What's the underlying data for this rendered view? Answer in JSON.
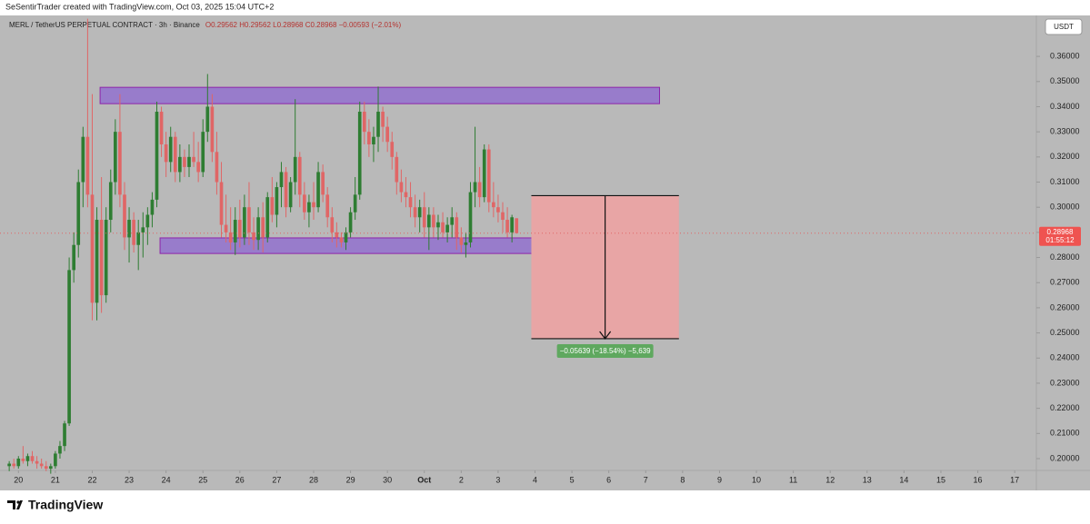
{
  "header": {
    "credit": "SeSentirTrader created with TradingView.com, Oct 03, 2025 15:04 UTC+2",
    "brand": "TradingView"
  },
  "chart_data": {
    "type": "candlestick",
    "title": "MERL / TetherUS PERPETUAL CONTRACT · 3h · Binance",
    "ohlc_legend": "O0.29562 H0.29562 L0.28968 C0.28968 −0.00593 (−2.01%)",
    "currency": "USDT",
    "countdown": "01:55:12",
    "up_color": "#2e7d32",
    "down_color": "#e06666",
    "background": "#b9b9b9",
    "xlim": [
      -2,
      222.7
    ],
    "xticks": [
      {
        "value": 2,
        "label": "20"
      },
      {
        "value": 10,
        "label": "21"
      },
      {
        "value": 18,
        "label": "22"
      },
      {
        "value": 26,
        "label": "23"
      },
      {
        "value": 34,
        "label": "24"
      },
      {
        "value": 42,
        "label": "25"
      },
      {
        "value": 50,
        "label": "26"
      },
      {
        "value": 58,
        "label": "27"
      },
      {
        "value": 66,
        "label": "28"
      },
      {
        "value": 74,
        "label": "29"
      },
      {
        "value": 82,
        "label": "30"
      },
      {
        "value": 90,
        "label": "Oct"
      },
      {
        "value": 98,
        "label": "2"
      },
      {
        "value": 106,
        "label": "3"
      },
      {
        "value": 114,
        "label": "4"
      },
      {
        "value": 122,
        "label": "5"
      },
      {
        "value": 130,
        "label": "6"
      },
      {
        "value": 138,
        "label": "7"
      },
      {
        "value": 146,
        "label": "8"
      },
      {
        "value": 154,
        "label": "9"
      },
      {
        "value": 162,
        "label": "10"
      },
      {
        "value": 170,
        "label": "11"
      },
      {
        "value": 178,
        "label": "12"
      },
      {
        "value": 186,
        "label": "13"
      },
      {
        "value": 194,
        "label": "14"
      },
      {
        "value": 202,
        "label": "15"
      },
      {
        "value": 210,
        "label": "16"
      },
      {
        "value": 218,
        "label": "17"
      }
    ],
    "ylim": [
      0.1953,
      0.3763
    ],
    "yticks": [
      {
        "value": 0.2,
        "label": "0.20000"
      },
      {
        "value": 0.21,
        "label": "0.21000"
      },
      {
        "value": 0.22,
        "label": "0.22000"
      },
      {
        "value": 0.23,
        "label": "0.23000"
      },
      {
        "value": 0.24,
        "label": "0.24000"
      },
      {
        "value": 0.25,
        "label": "0.25000"
      },
      {
        "value": 0.26,
        "label": "0.26000"
      },
      {
        "value": 0.27,
        "label": "0.27000"
      },
      {
        "value": 0.28,
        "label": "0.28000"
      },
      {
        "value": 0.29,
        "label": "0.29000"
      },
      {
        "value": 0.3,
        "label": "0.30000"
      },
      {
        "value": 0.31,
        "label": "0.31000"
      },
      {
        "value": 0.32,
        "label": "0.32000"
      },
      {
        "value": 0.33,
        "label": "0.33000"
      },
      {
        "value": 0.34,
        "label": "0.34000"
      },
      {
        "value": 0.35,
        "label": "0.35000"
      },
      {
        "value": 0.36,
        "label": "0.36000"
      }
    ],
    "grid": false,
    "open": [
      0.197,
      0.198,
      0.197,
      0.2,
      0.199,
      0.201,
      0.199,
      0.198,
      0.197,
      0.196,
      0.197,
      0.202,
      0.205,
      0.214,
      0.275,
      0.285,
      0.31,
      0.328,
      0.305,
      0.262,
      0.295,
      0.265,
      0.295,
      0.31,
      0.33,
      0.305,
      0.288,
      0.295,
      0.285,
      0.29,
      0.292,
      0.297,
      0.303,
      0.338,
      0.325,
      0.318,
      0.328,
      0.314,
      0.32,
      0.316,
      0.32,
      0.318,
      0.314,
      0.33,
      0.34,
      0.322,
      0.31,
      0.293,
      0.29,
      0.286,
      0.295,
      0.288,
      0.3,
      0.29,
      0.287,
      0.296,
      0.288,
      0.304,
      0.297,
      0.308,
      0.314,
      0.3,
      0.31,
      0.32,
      0.305,
      0.298,
      0.302,
      0.3,
      0.314,
      0.305,
      0.296,
      0.29,
      0.288,
      0.286,
      0.29,
      0.298,
      0.305,
      0.338,
      0.33,
      0.325,
      0.328,
      0.338,
      0.332,
      0.326,
      0.32,
      0.31,
      0.306,
      0.304,
      0.3,
      0.296,
      0.3,
      0.292,
      0.297,
      0.292,
      0.294,
      0.29,
      0.293,
      0.296,
      0.288,
      0.285,
      0.286,
      0.306,
      0.31,
      0.304,
      0.323,
      0.302,
      0.3,
      0.298,
      0.295,
      0.29,
      0.29562
    ],
    "high": [
      0.199,
      0.2,
      0.201,
      0.205,
      0.202,
      0.203,
      0.201,
      0.2,
      0.199,
      0.198,
      0.203,
      0.207,
      0.215,
      0.28,
      0.29,
      0.315,
      0.332,
      0.375,
      0.345,
      0.3,
      0.312,
      0.3,
      0.315,
      0.335,
      0.345,
      0.31,
      0.3,
      0.298,
      0.295,
      0.298,
      0.3,
      0.306,
      0.342,
      0.34,
      0.33,
      0.332,
      0.33,
      0.325,
      0.323,
      0.325,
      0.33,
      0.326,
      0.335,
      0.353,
      0.345,
      0.33,
      0.318,
      0.305,
      0.3,
      0.3,
      0.303,
      0.305,
      0.31,
      0.296,
      0.3,
      0.302,
      0.306,
      0.312,
      0.31,
      0.318,
      0.316,
      0.312,
      0.343,
      0.322,
      0.31,
      0.305,
      0.31,
      0.318,
      0.317,
      0.308,
      0.3,
      0.294,
      0.29,
      0.292,
      0.3,
      0.312,
      0.342,
      0.342,
      0.335,
      0.332,
      0.348,
      0.34,
      0.336,
      0.33,
      0.322,
      0.315,
      0.312,
      0.31,
      0.305,
      0.303,
      0.306,
      0.3,
      0.3,
      0.297,
      0.298,
      0.296,
      0.3,
      0.298,
      0.292,
      0.29,
      0.31,
      0.332,
      0.316,
      0.325,
      0.325,
      0.31,
      0.305,
      0.302,
      0.3,
      0.297,
      0.29562
    ],
    "low": [
      0.195,
      0.196,
      0.196,
      0.198,
      0.197,
      0.198,
      0.196,
      0.196,
      0.195,
      0.194,
      0.196,
      0.2,
      0.203,
      0.213,
      0.27,
      0.28,
      0.3,
      0.3,
      0.255,
      0.255,
      0.258,
      0.262,
      0.29,
      0.305,
      0.3,
      0.283,
      0.278,
      0.282,
      0.275,
      0.28,
      0.285,
      0.292,
      0.3,
      0.32,
      0.312,
      0.314,
      0.31,
      0.31,
      0.312,
      0.312,
      0.316,
      0.31,
      0.312,
      0.326,
      0.318,
      0.305,
      0.288,
      0.286,
      0.283,
      0.281,
      0.284,
      0.285,
      0.285,
      0.283,
      0.283,
      0.282,
      0.286,
      0.294,
      0.292,
      0.3,
      0.296,
      0.298,
      0.305,
      0.3,
      0.295,
      0.292,
      0.295,
      0.298,
      0.302,
      0.292,
      0.286,
      0.284,
      0.284,
      0.283,
      0.288,
      0.295,
      0.303,
      0.325,
      0.32,
      0.318,
      0.322,
      0.326,
      0.322,
      0.315,
      0.305,
      0.302,
      0.3,
      0.296,
      0.292,
      0.29,
      0.288,
      0.283,
      0.288,
      0.287,
      0.288,
      0.286,
      0.288,
      0.283,
      0.282,
      0.28,
      0.284,
      0.3,
      0.3,
      0.302,
      0.298,
      0.296,
      0.294,
      0.29,
      0.288,
      0.286,
      0.28968
    ],
    "close": [
      0.198,
      0.197,
      0.2,
      0.199,
      0.201,
      0.199,
      0.198,
      0.197,
      0.196,
      0.197,
      0.202,
      0.205,
      0.214,
      0.275,
      0.285,
      0.31,
      0.328,
      0.305,
      0.262,
      0.295,
      0.265,
      0.295,
      0.31,
      0.33,
      0.305,
      0.288,
      0.295,
      0.285,
      0.29,
      0.292,
      0.297,
      0.303,
      0.338,
      0.325,
      0.318,
      0.328,
      0.314,
      0.32,
      0.316,
      0.32,
      0.318,
      0.314,
      0.33,
      0.34,
      0.322,
      0.31,
      0.293,
      0.29,
      0.286,
      0.295,
      0.288,
      0.3,
      0.29,
      0.287,
      0.296,
      0.288,
      0.304,
      0.297,
      0.308,
      0.314,
      0.3,
      0.31,
      0.32,
      0.305,
      0.298,
      0.302,
      0.3,
      0.314,
      0.305,
      0.296,
      0.29,
      0.288,
      0.286,
      0.29,
      0.298,
      0.305,
      0.338,
      0.33,
      0.325,
      0.328,
      0.338,
      0.332,
      0.326,
      0.32,
      0.31,
      0.306,
      0.304,
      0.3,
      0.296,
      0.3,
      0.292,
      0.297,
      0.292,
      0.294,
      0.29,
      0.293,
      0.296,
      0.288,
      0.285,
      0.286,
      0.306,
      0.31,
      0.304,
      0.323,
      0.302,
      0.3,
      0.298,
      0.295,
      0.29,
      0.296,
      0.28968
    ],
    "zones": [
      {
        "from": 19.7,
        "to": 141,
        "top": 0.3477,
        "bottom": 0.3412,
        "color": "#9575cd"
      },
      {
        "from": 32.7,
        "to": 115.2,
        "top": 0.2878,
        "bottom": 0.2816,
        "color": "#9575cd"
      }
    ],
    "projection": {
      "from": 113.2,
      "to": 145.2,
      "top": 0.3046,
      "bottom": 0.2477,
      "color": "#e8a5a5",
      "label": "−0.05639 (−18.54%) −5,639"
    }
  }
}
